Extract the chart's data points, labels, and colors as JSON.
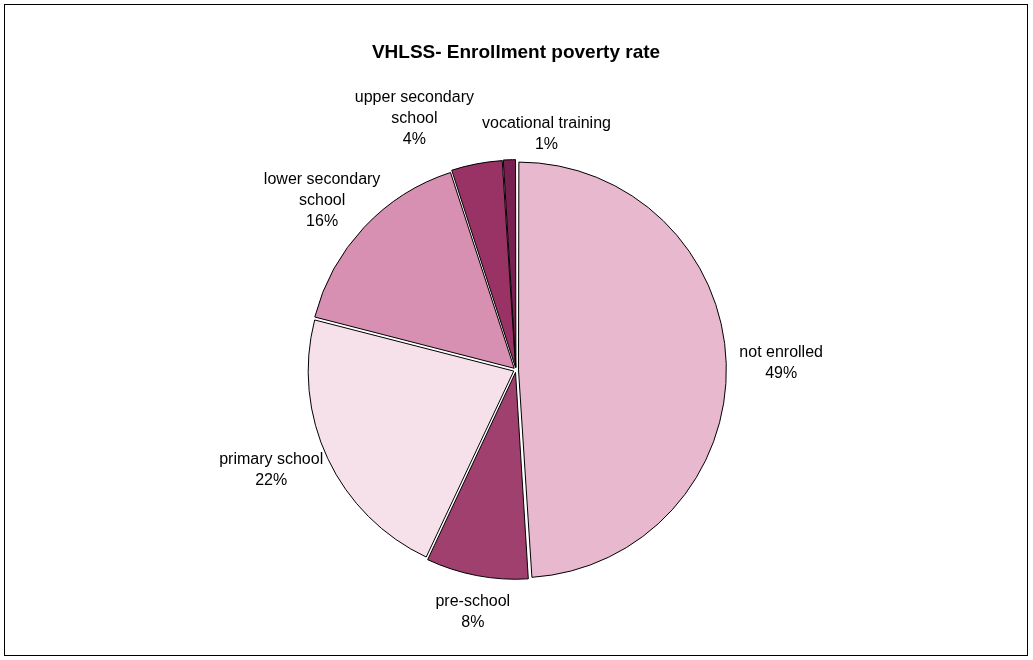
{
  "chart_data": {
    "type": "pie",
    "title": "VHLSS- Enrollment poverty rate",
    "categories": [
      "not enrolled",
      "pre-school",
      "primary school",
      "lower secondary school",
      "upper secondary school",
      "vocational training"
    ],
    "values": [
      49,
      8,
      22,
      16,
      4,
      1
    ],
    "colors": [
      "#e8b8cf",
      "#a0406e",
      "#f6e0ea",
      "#d78fb2",
      "#993366",
      "#7a2050"
    ],
    "value_labels": [
      "49%",
      "8%",
      "22%",
      "16%",
      "4%",
      "1%"
    ],
    "legend": false
  }
}
